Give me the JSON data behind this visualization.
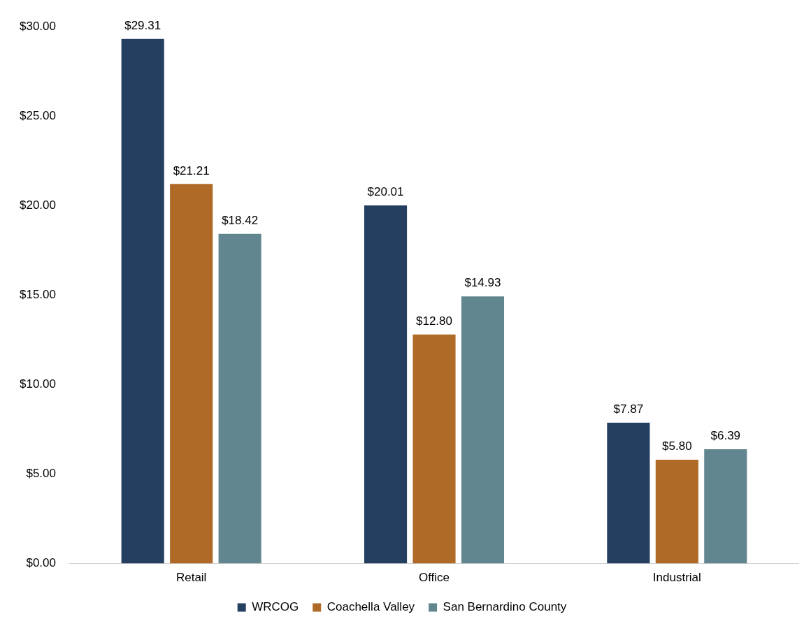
{
  "chart_data": {
    "type": "bar",
    "categories": [
      "Retail",
      "Office",
      "Industrial"
    ],
    "series": [
      {
        "name": "WRCOG",
        "color": "#253f61",
        "values": [
          29.31,
          20.01,
          7.87
        ],
        "value_labels": [
          "$29.31",
          "$20.01",
          "$7.87"
        ]
      },
      {
        "name": "Coachella Valley",
        "color": "#b06a28",
        "values": [
          21.21,
          12.8,
          5.8
        ],
        "value_labels": [
          "$21.21",
          "$12.80",
          "$5.80"
        ]
      },
      {
        "name": "San Bernardino County",
        "color": "#62868f",
        "values": [
          18.42,
          14.93,
          6.39
        ],
        "value_labels": [
          "$18.42",
          "$14.93",
          "$6.39"
        ]
      }
    ],
    "ylim": [
      0,
      30
    ],
    "yticks": [
      {
        "value": 0,
        "label": "$0.00"
      },
      {
        "value": 5,
        "label": "$5.00"
      },
      {
        "value": 10,
        "label": "$10.00"
      },
      {
        "value": 15,
        "label": "$15.00"
      },
      {
        "value": 20,
        "label": "$20.00"
      },
      {
        "value": 25,
        "label": "$25.00"
      },
      {
        "value": 30,
        "label": "$30.00"
      }
    ],
    "legend": "bottom"
  }
}
